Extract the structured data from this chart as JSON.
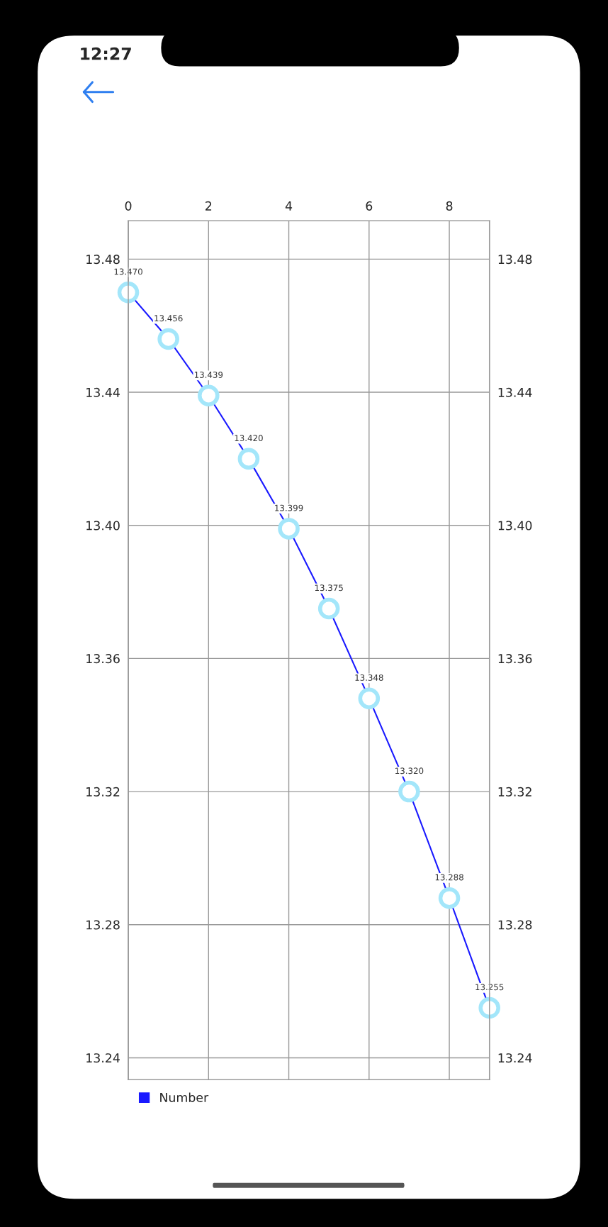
{
  "chart_data": {
    "type": "line",
    "annotations": [
      "12:27"
    ],
    "x": [
      0,
      1,
      2,
      3,
      4,
      5,
      6,
      7,
      8,
      9
    ],
    "series": [
      {
        "name": "Number",
        "color": "#1a1aff",
        "values": [
          13.47,
          13.456,
          13.439,
          13.42,
          13.399,
          13.375,
          13.348,
          13.32,
          13.288,
          13.255
        ],
        "value_labels": [
          "13.470",
          "13.456",
          "13.439",
          "13.420",
          "13.399",
          "13.375",
          "13.348",
          "13.320",
          "13.288",
          "13.255"
        ]
      }
    ],
    "xlim": [
      0,
      9
    ],
    "xticks": [
      0,
      2,
      4,
      6,
      8
    ],
    "ylim": [
      13.2334,
      13.4915
    ],
    "yticks": [
      13.24,
      13.28,
      13.32,
      13.36,
      {
        "value": 13.4,
        "label": "13.40"
      },
      13.44,
      13.48
    ],
    "y2lim": [
      13.2334,
      13.4915
    ],
    "y2ticks": [
      13.24,
      13.28,
      13.32,
      13.36,
      {
        "value": 13.4,
        "label": "13.40"
      },
      13.44,
      13.48
    ],
    "grid": true,
    "legend": "bottom left",
    "marker": "circle",
    "line_style": "solid"
  }
}
